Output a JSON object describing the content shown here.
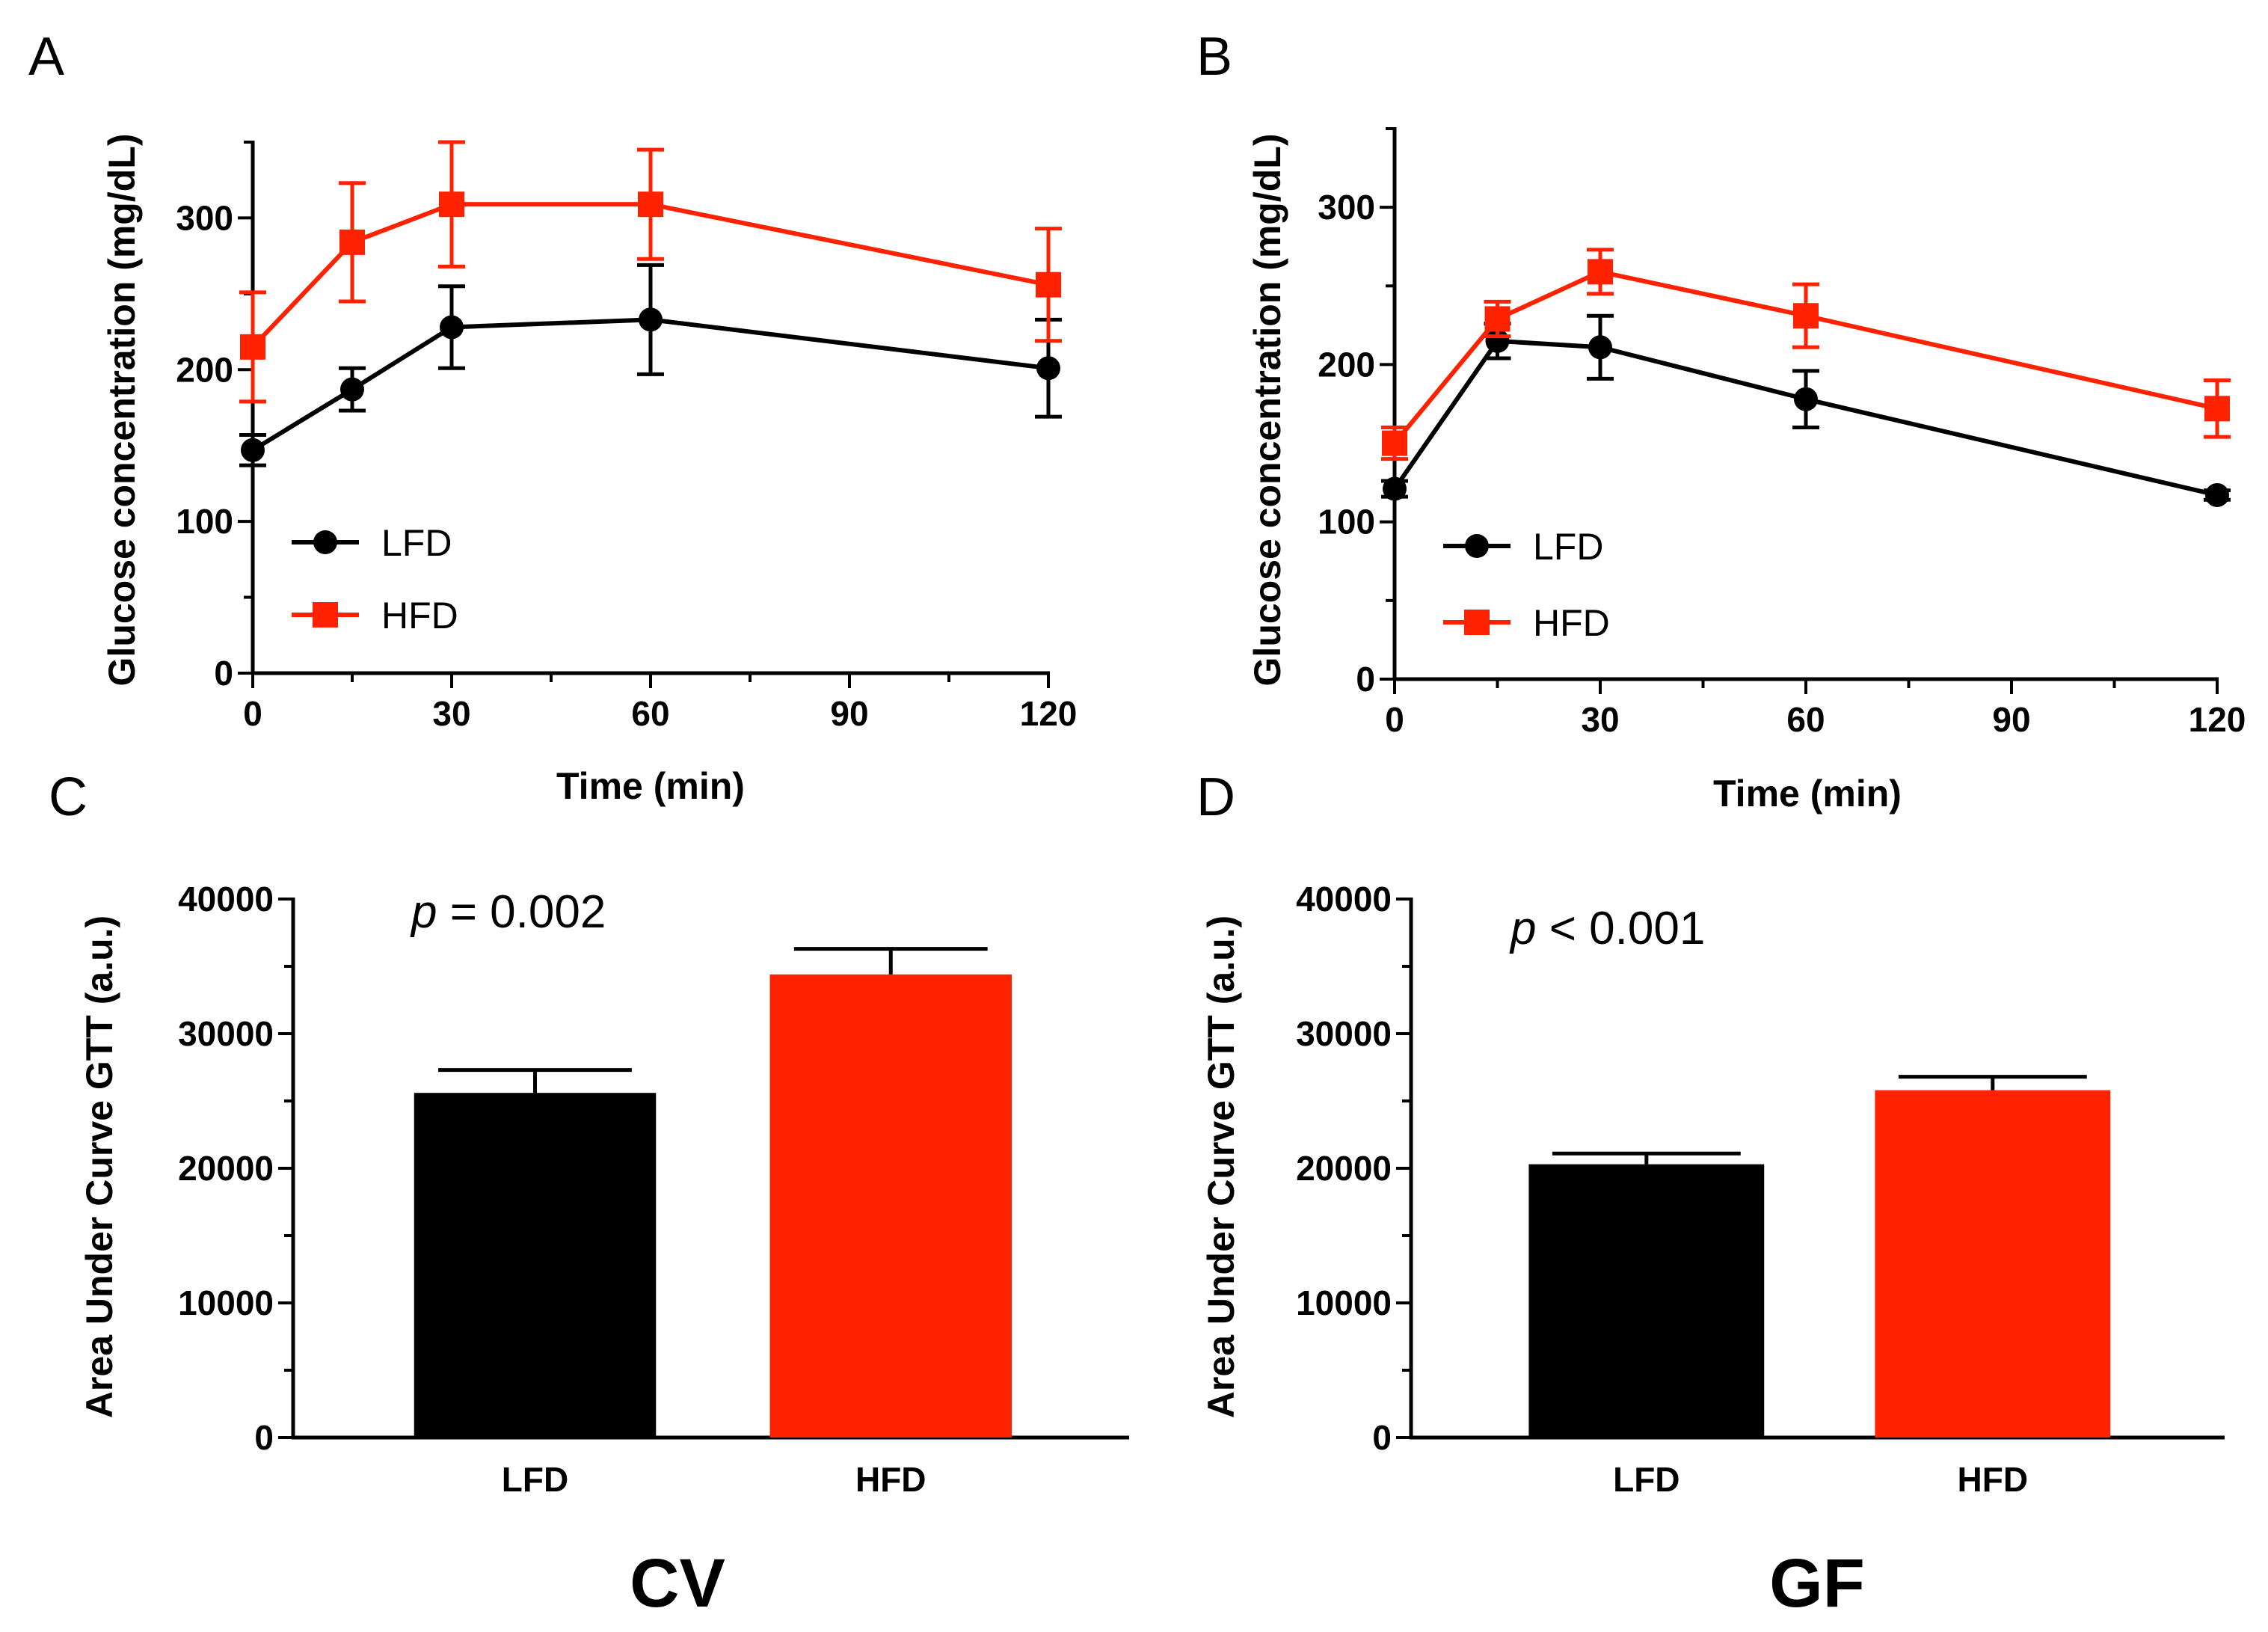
{
  "chart_data": [
    {
      "panel": "A",
      "type": "line",
      "xlabel": "Time (min)",
      "ylabel": "Glucose concentration (mg/dL)",
      "xlim": [
        0,
        120
      ],
      "ylim": [
        0,
        350
      ],
      "xticks": [
        0,
        30,
        60,
        90,
        120
      ],
      "yticks": [
        0,
        100,
        200,
        300
      ],
      "legend": "bottom-left",
      "series": [
        {
          "name": "LFD",
          "color": "#000000",
          "marker": "circle",
          "x": [
            0,
            15,
            30,
            60,
            120
          ],
          "y": [
            147,
            187,
            228,
            233,
            201
          ],
          "err": [
            10,
            14,
            27,
            36,
            32
          ]
        },
        {
          "name": "HFD",
          "color": "#ff2200",
          "marker": "square",
          "x": [
            0,
            15,
            30,
            60,
            120
          ],
          "y": [
            215,
            284,
            309,
            309,
            256
          ],
          "err": [
            36,
            39,
            41,
            36,
            37
          ]
        }
      ]
    },
    {
      "panel": "B",
      "type": "line",
      "xlabel": "Time (min)",
      "ylabel": "Glucose concentration (mg/dL)",
      "xlim": [
        0,
        120
      ],
      "ylim": [
        0,
        350
      ],
      "xticks": [
        0,
        30,
        60,
        90,
        120
      ],
      "yticks": [
        0,
        100,
        200,
        300
      ],
      "legend": "bottom-left",
      "series": [
        {
          "name": "LFD",
          "color": "#000000",
          "marker": "circle",
          "x": [
            0,
            15,
            30,
            60,
            120
          ],
          "y": [
            121,
            215,
            211,
            178,
            117
          ],
          "err": [
            5,
            11,
            20,
            18,
            3
          ]
        },
        {
          "name": "HFD",
          "color": "#ff2200",
          "marker": "square",
          "x": [
            0,
            15,
            30,
            60,
            120
          ],
          "y": [
            150,
            229,
            259,
            231,
            172
          ],
          "err": [
            10,
            11,
            14,
            20,
            18
          ]
        }
      ]
    },
    {
      "panel": "C",
      "type": "bar",
      "group": "CV",
      "ylabel": "Area Under Curve GTT (a.u.)",
      "ylim": [
        0,
        40000
      ],
      "yticks": [
        0,
        10000,
        20000,
        30000,
        40000
      ],
      "annotation_prefix": "p",
      "annotation_suffix": " = 0.002",
      "categories": [
        "LFD",
        "HFD"
      ],
      "values": [
        25600,
        34400
      ],
      "err": [
        1700,
        1900
      ],
      "colors": [
        "#000000",
        "#ff2200"
      ]
    },
    {
      "panel": "D",
      "type": "bar",
      "group": "GF",
      "ylabel": "Area Under Curve GTT (a.u.)",
      "ylim": [
        0,
        40000
      ],
      "yticks": [
        0,
        10000,
        20000,
        30000,
        40000
      ],
      "annotation_prefix": "p",
      "annotation_suffix": " < 0.001",
      "categories": [
        "LFD",
        "HFD"
      ],
      "values": [
        20300,
        25800
      ],
      "err": [
        800,
        1000
      ],
      "colors": [
        "#000000",
        "#ff2200"
      ]
    }
  ]
}
